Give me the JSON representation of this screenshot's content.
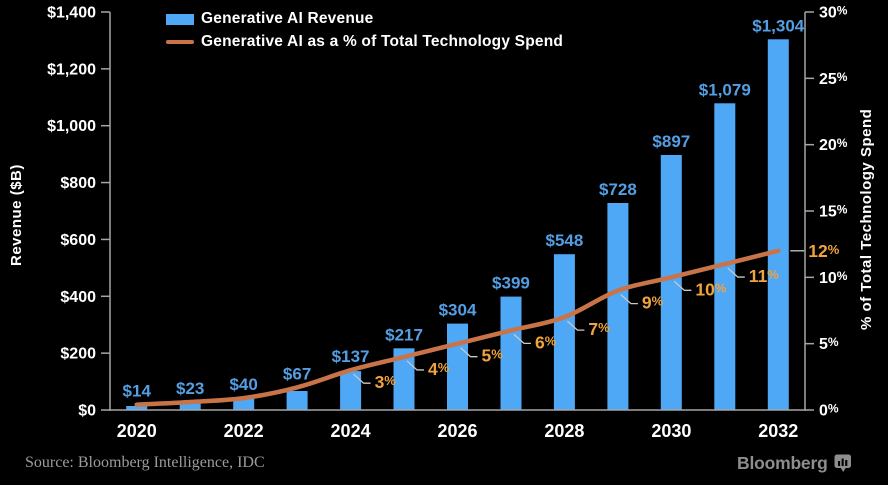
{
  "chart_data": {
    "type": "bar+line",
    "categories": [
      "2020",
      "2021",
      "2022",
      "2023",
      "2024",
      "2025",
      "2026",
      "2027",
      "2028",
      "2029",
      "2030",
      "2031",
      "2032"
    ],
    "series": [
      {
        "name": "Generative AI Revenue",
        "type": "bar",
        "axis": "left",
        "unit": "$B",
        "values": [
          14,
          23,
          40,
          67,
          137,
          217,
          304,
          399,
          548,
          728,
          897,
          1079,
          1304
        ],
        "value_labels": [
          "$14",
          "$23",
          "$40",
          "$67",
          "$137",
          "$217",
          "$304",
          "$399",
          "$548",
          "$728",
          "$897",
          "$1,079",
          "$1,304"
        ]
      },
      {
        "name": "Generative AI as a % of Total Technology Spend",
        "type": "line",
        "axis": "right",
        "unit": "%",
        "values": [
          0.4,
          0.6,
          0.9,
          1.7,
          3,
          4,
          5,
          6,
          7,
          9,
          10,
          11,
          12
        ],
        "point_labels": [
          null,
          null,
          null,
          null,
          "3%",
          "4%",
          "5%",
          "6%",
          "7%",
          "9%",
          "10%",
          "11%",
          "12%"
        ]
      }
    ],
    "left_axis": {
      "title": "Revenue ($B)",
      "min": 0,
      "max": 1400,
      "ticks": [
        "$0",
        "$200",
        "$400",
        "$600",
        "$800",
        "$1,000",
        "$1,200",
        "$1,400"
      ]
    },
    "right_axis": {
      "title": "% of Total Technology Spend",
      "min": 0,
      "max": 30,
      "ticks": [
        "0%",
        "5%",
        "10%",
        "15%",
        "20%",
        "25%",
        "30%"
      ]
    },
    "x_axis": {
      "shown_ticks": [
        "2020",
        "2022",
        "2024",
        "2026",
        "2028",
        "2030",
        "2032"
      ]
    },
    "legend": {
      "position": "top-inside",
      "items": [
        {
          "label": "Generative AI Revenue",
          "marker": "bar"
        },
        {
          "label": "Generative AI as a % of Total Technology Spend",
          "marker": "line"
        }
      ]
    },
    "grid": false
  },
  "colors": {
    "background": "#000000",
    "bar": "#4FA8F5",
    "bar_label": "#549EE3",
    "line": "#C97448",
    "pct_label": "#F2A33C",
    "axis": "#A6A6A6",
    "tick_text": "#FFFFFF",
    "leader": "#C8C8C8"
  },
  "footer": {
    "source": "Source: Bloomberg Intelligence, IDC",
    "logo_text": "Bloomberg"
  }
}
